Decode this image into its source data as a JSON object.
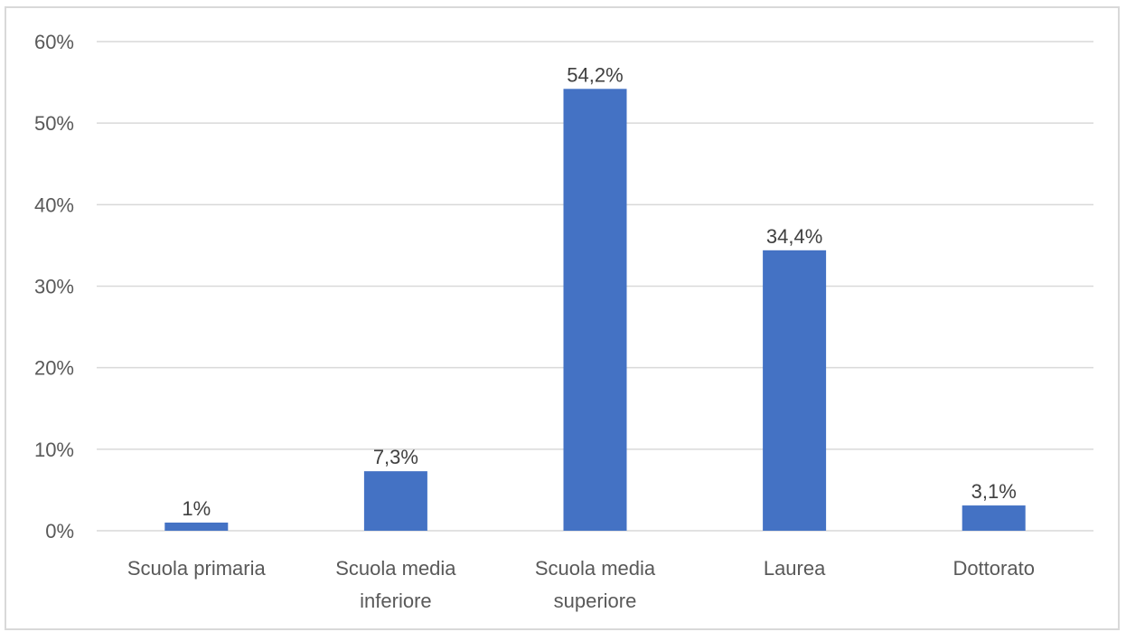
{
  "chart_data": {
    "type": "bar",
    "categories": [
      [
        "Scuola primaria"
      ],
      [
        "Scuola media",
        "inferiore"
      ],
      [
        "Scuola media",
        "superiore"
      ],
      [
        "Laurea"
      ],
      [
        "Dottorato"
      ]
    ],
    "values": [
      1,
      7.3,
      54.2,
      34.4,
      3.1
    ],
    "data_labels": [
      "1%",
      "7,3%",
      "54,2%",
      "34,4%",
      "3,1%"
    ],
    "y_ticks": [
      0,
      10,
      20,
      30,
      40,
      50,
      60
    ],
    "y_tick_labels": [
      "0%",
      "10%",
      "20%",
      "30%",
      "40%",
      "50%",
      "60%"
    ],
    "ylim": [
      0,
      60
    ],
    "title": "",
    "xlabel": "",
    "ylabel": "",
    "grid": true,
    "legend": "none",
    "colors": {
      "bar": "#4472c4",
      "grid": "#d9d9d9",
      "axis_text": "#595959",
      "data_label_text": "#404040"
    }
  }
}
